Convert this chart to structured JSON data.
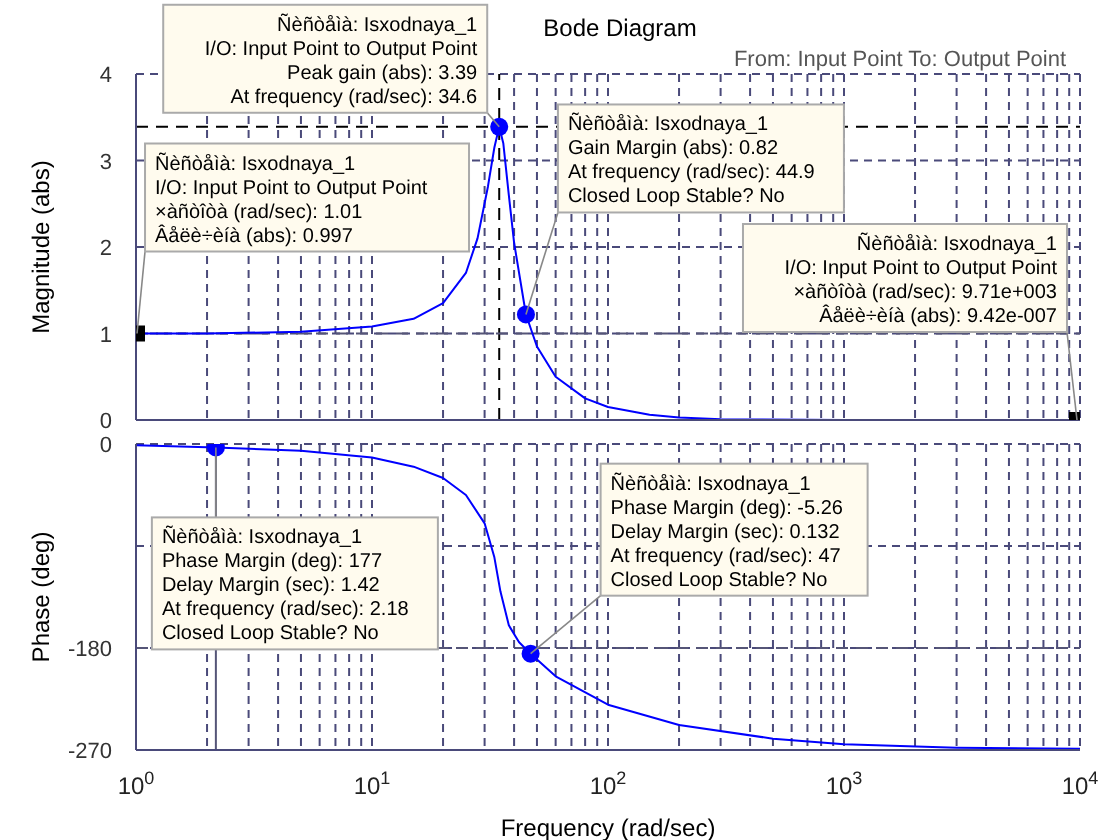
{
  "chart_data": [
    {
      "type": "line",
      "title": "Bode Diagram",
      "subtitle": "From: Input Point  To: Output Point",
      "ylabel": "Magnitude (abs)",
      "log": "x",
      "xlim": [
        1,
        10000
      ],
      "ylim": [
        0,
        4
      ],
      "yticks": [
        0,
        1,
        2,
        3,
        4
      ],
      "xticks": [
        {
          "value": 1,
          "label": null
        },
        {
          "value": 2,
          "label": null
        },
        {
          "value": 3,
          "label": null
        },
        {
          "value": 4,
          "label": null
        },
        {
          "value": 5,
          "label": null
        },
        {
          "value": 6,
          "label": null
        },
        {
          "value": 7,
          "label": null
        },
        {
          "value": 8,
          "label": null
        },
        {
          "value": 9,
          "label": null
        },
        {
          "value": 10,
          "label": null
        },
        {
          "value": 20,
          "label": null
        },
        {
          "value": 30,
          "label": null
        },
        {
          "value": 40,
          "label": null
        },
        {
          "value": 50,
          "label": null
        },
        {
          "value": 60,
          "label": null
        },
        {
          "value": 70,
          "label": null
        },
        {
          "value": 80,
          "label": null
        },
        {
          "value": 90,
          "label": null
        },
        {
          "value": 100,
          "label": null
        },
        {
          "value": 200,
          "label": null
        },
        {
          "value": 300,
          "label": null
        },
        {
          "value": 400,
          "label": null
        },
        {
          "value": 500,
          "label": null
        },
        {
          "value": 600,
          "label": null
        },
        {
          "value": 700,
          "label": null
        },
        {
          "value": 800,
          "label": null
        },
        {
          "value": 900,
          "label": null
        },
        {
          "value": 1000,
          "label": null
        },
        {
          "value": 2000,
          "label": null
        },
        {
          "value": 3000,
          "label": null
        },
        {
          "value": 4000,
          "label": null
        },
        {
          "value": 5000,
          "label": null
        },
        {
          "value": 6000,
          "label": null
        },
        {
          "value": 7000,
          "label": null
        },
        {
          "value": 8000,
          "label": null
        },
        {
          "value": 9000,
          "label": null
        },
        {
          "value": 10000,
          "label": null
        }
      ],
      "tick_labels": "y",
      "grid": true,
      "legend": false,
      "series": [
        {
          "color": "#0000ff",
          "marker": "none",
          "x": [
            1,
            2,
            5,
            10,
            15,
            20,
            25,
            28,
            31,
            33,
            34.6,
            36,
            38,
            40,
            44.9,
            50,
            60,
            80,
            100,
            150,
            200,
            300,
            1000,
            10000
          ],
          "values": [
            1,
            1,
            1.02,
            1.08,
            1.17,
            1.35,
            1.7,
            2.1,
            2.7,
            3.15,
            3.39,
            3.2,
            2.6,
            2.05,
            1.22,
            0.85,
            0.5,
            0.25,
            0.15,
            0.06,
            0.03,
            0.01,
            0,
            0
          ]
        },
        {
          "type": "scatter",
          "color": "#0000ff",
          "marker": "circle",
          "x": [
            34.6,
            44.9
          ],
          "values": [
            3.39,
            1.22
          ]
        },
        {
          "type": "scatter",
          "color": "#000000",
          "marker": "square",
          "x": [
            1.01,
            9710
          ],
          "values": [
            1,
            0
          ]
        }
      ],
      "ref_lines": [
        {
          "axis": "y",
          "value": 3.39,
          "color": "#000000",
          "line_style": "dashed"
        },
        {
          "axis": "x",
          "value": 34.6,
          "color": "#000000",
          "line_style": "dashed"
        },
        {
          "axis": "y",
          "value": 1,
          "color": "#555577",
          "line_style": "dashed"
        }
      ],
      "annotations": [
        {
          "text": "Ñèñòåìà: Isxodnaya_1\nI/O: Input Point to Output Point\nPeak gain (abs): 3.39\nAt frequency (rad/sec): 34.6",
          "x": 34.6,
          "y": 3.39
        },
        {
          "text": "Ñèñòåìà: Isxodnaya_1\nI/O: Input Point to Output Point\n×àñòîòà (rad/sec): 1.01\nÂåëè÷èíà (abs): 0.997",
          "x": 1.01,
          "y": 1
        },
        {
          "text": "Ñèñòåìà: Isxodnaya_1\nGain Margin (abs): 0.82\nAt frequency (rad/sec): 44.9\nClosed Loop Stable? No",
          "x": 44.9,
          "y": 1.22
        },
        {
          "text": "Ñèñòåìà: Isxodnaya_1\nI/O: Input Point to Output Point\n×àñòîòà (rad/sec): 9.71e+003\nÂåëè÷èíà (abs): 9.42e-007",
          "x": 9710,
          "y": 0
        }
      ]
    },
    {
      "type": "line",
      "xlabel": "Frequency  (rad/sec)",
      "ylabel": "Phase (deg)",
      "log": "x",
      "xlim": [
        1,
        10000
      ],
      "ylim": [
        -270,
        0
      ],
      "yticks": [
        0,
        {
          "value": -90,
          "label": null
        },
        -180,
        -270
      ],
      "xticks": [
        {
          "value": 1,
          "label": "10$^{0}$"
        },
        {
          "value": 2,
          "label": null
        },
        {
          "value": 3,
          "label": null
        },
        {
          "value": 4,
          "label": null
        },
        {
          "value": 5,
          "label": null
        },
        {
          "value": 6,
          "label": null
        },
        {
          "value": 7,
          "label": null
        },
        {
          "value": 8,
          "label": null
        },
        {
          "value": 9,
          "label": null
        },
        {
          "value": 10,
          "label": "10$^{1}$"
        },
        {
          "value": 20,
          "label": null
        },
        {
          "value": 30,
          "label": null
        },
        {
          "value": 40,
          "label": null
        },
        {
          "value": 50,
          "label": null
        },
        {
          "value": 60,
          "label": null
        },
        {
          "value": 70,
          "label": null
        },
        {
          "value": 80,
          "label": null
        },
        {
          "value": 90,
          "label": null
        },
        {
          "value": 100,
          "label": "10$^{2}$"
        },
        {
          "value": 200,
          "label": null
        },
        {
          "value": 300,
          "label": null
        },
        {
          "value": 400,
          "label": null
        },
        {
          "value": 500,
          "label": null
        },
        {
          "value": 600,
          "label": null
        },
        {
          "value": 700,
          "label": null
        },
        {
          "value": 800,
          "label": null
        },
        {
          "value": 900,
          "label": null
        },
        {
          "value": 1000,
          "label": "10$^{3}$"
        },
        {
          "value": 2000,
          "label": null
        },
        {
          "value": 3000,
          "label": null
        },
        {
          "value": 4000,
          "label": null
        },
        {
          "value": 5000,
          "label": null
        },
        {
          "value": 6000,
          "label": null
        },
        {
          "value": 7000,
          "label": null
        },
        {
          "value": 8000,
          "label": null
        },
        {
          "value": 9000,
          "label": null
        },
        {
          "value": 10000,
          "label": "10$^{4}$"
        }
      ],
      "grid": true,
      "legend": false,
      "series": [
        {
          "color": "#0000ff",
          "marker": "none",
          "x": [
            1,
            2.18,
            5,
            10,
            15,
            20,
            25,
            30,
            33,
            35,
            38,
            42,
            47,
            60,
            100,
            200,
            500,
            1000,
            3000,
            10000
          ],
          "values": [
            -1,
            -3,
            -6,
            -12,
            -20,
            -30,
            -45,
            -70,
            -100,
            -130,
            -160,
            -175,
            -185,
            -205,
            -230,
            -248,
            -260,
            -265,
            -268,
            -269
          ]
        },
        {
          "type": "scatter",
          "color": "#0000ff",
          "marker": "circle",
          "x": [
            2.18,
            47
          ],
          "values": [
            -3,
            -185
          ]
        }
      ],
      "ref_lines": [
        {
          "axis": "y",
          "value": -180,
          "color": "#555577",
          "line_style": "dashed"
        },
        {
          "axis": "x",
          "value": 2.18,
          "color": "#555577",
          "line_style": "solid"
        }
      ],
      "annotations": [
        {
          "text": "Ñèñòåìà: Isxodnaya_1\nPhase Margin (deg): 177\nDelay Margin (sec): 1.42\nAt frequency (rad/sec): 2.18\nClosed Loop Stable? No",
          "x": 2.18,
          "y": -3
        },
        {
          "text": "Ñèñòåìà: Isxodnaya_1\nPhase Margin (deg): -5.26\nDelay Margin (sec): 0.132\nAt frequency (rad/sec): 47\nClosed Loop Stable? No",
          "x": 47,
          "y": -185
        }
      ]
    }
  ]
}
